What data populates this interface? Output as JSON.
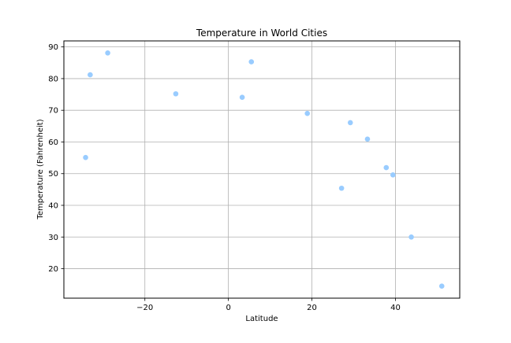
{
  "chart_data": {
    "type": "scatter",
    "title": "Temperature in World Cities",
    "xlabel": "Latitude",
    "ylabel": "Temperature (Fahrenheit)",
    "xlim": [
      -39.4,
      55.4
    ],
    "ylim": [
      10.7,
      91.9
    ],
    "xticks": [
      -20,
      0,
      20,
      40
    ],
    "yticks": [
      20,
      30,
      40,
      50,
      60,
      70,
      80,
      90
    ],
    "xtick_labels": [
      "−20",
      "0",
      "20",
      "40"
    ],
    "ytick_labels": [
      "20",
      "30",
      "40",
      "50",
      "60",
      "70",
      "80",
      "90"
    ],
    "grid": true,
    "marker_color": "#99ccff",
    "points": [
      {
        "x": -33.1,
        "y": 81.2
      },
      {
        "x": -28.9,
        "y": 88.1
      },
      {
        "x": -34.2,
        "y": 55.1
      },
      {
        "x": -12.6,
        "y": 75.2
      },
      {
        "x": 3.3,
        "y": 74.1
      },
      {
        "x": 5.5,
        "y": 85.3
      },
      {
        "x": 18.9,
        "y": 69.0
      },
      {
        "x": 29.2,
        "y": 66.1
      },
      {
        "x": 33.3,
        "y": 60.9
      },
      {
        "x": 27.1,
        "y": 45.4
      },
      {
        "x": 37.8,
        "y": 51.9
      },
      {
        "x": 39.4,
        "y": 49.6
      },
      {
        "x": 43.8,
        "y": 30.0
      },
      {
        "x": 51.1,
        "y": 14.5
      }
    ]
  }
}
